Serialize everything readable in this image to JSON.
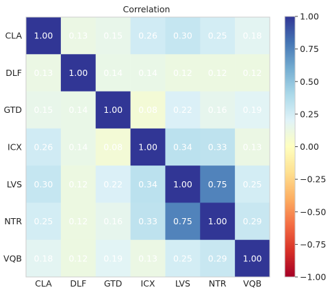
{
  "chart_data": {
    "type": "heatmap",
    "title": "Correlation",
    "row_labels": [
      "CLA",
      "DLF",
      "GTD",
      "ICX",
      "LVS",
      "NTR",
      "VQB"
    ],
    "col_labels": [
      "CLA",
      "DLF",
      "GTD",
      "ICX",
      "LVS",
      "NTR",
      "VQB"
    ],
    "values": [
      [
        1.0,
        0.13,
        0.15,
        0.26,
        0.3,
        0.25,
        0.18
      ],
      [
        0.13,
        1.0,
        0.14,
        0.14,
        0.12,
        0.12,
        0.12
      ],
      [
        0.15,
        0.14,
        1.0,
        0.08,
        0.22,
        0.16,
        0.19
      ],
      [
        0.26,
        0.14,
        0.08,
        1.0,
        0.34,
        0.33,
        0.13
      ],
      [
        0.3,
        0.12,
        0.22,
        0.34,
        1.0,
        0.75,
        0.25
      ],
      [
        0.25,
        0.12,
        0.16,
        0.33,
        0.75,
        1.0,
        0.29
      ],
      [
        0.18,
        0.12,
        0.19,
        0.13,
        0.25,
        0.29,
        1.0
      ]
    ],
    "vmin": -1.0,
    "vmax": 1.0,
    "colormap": "RdYlBu",
    "colorbar_ticks": [
      "1.00",
      "0.75",
      "0.50",
      "0.25",
      "0.00",
      "−0.25",
      "−0.50",
      "−0.75",
      "−1.00"
    ],
    "colorbar_tick_values": [
      1.0,
      0.75,
      0.5,
      0.25,
      0.0,
      -0.25,
      -0.5,
      -0.75,
      -1.0
    ],
    "grid": false,
    "legend": "colorbar-right"
  }
}
